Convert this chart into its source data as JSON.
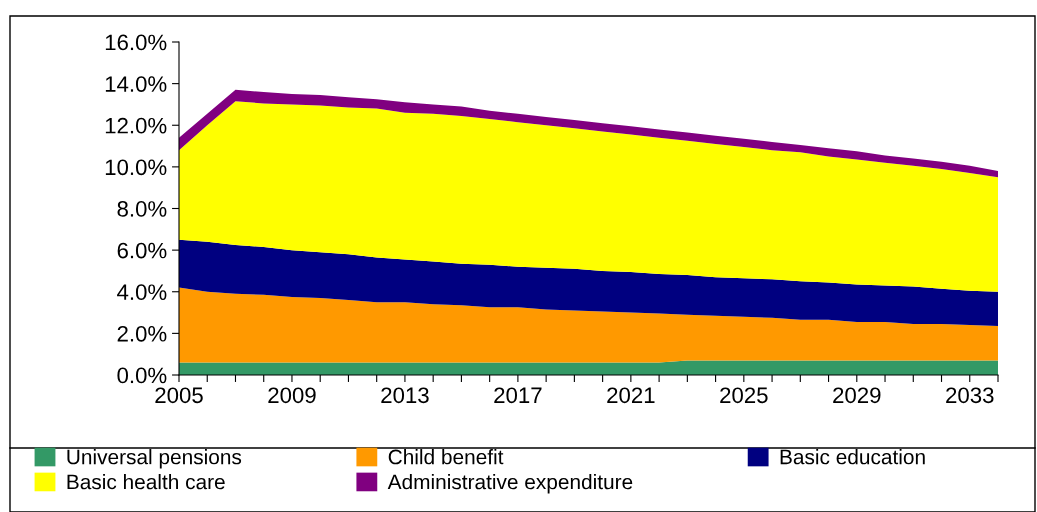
{
  "chart_data": {
    "type": "area",
    "stacked": true,
    "x": [
      2005,
      2006,
      2007,
      2008,
      2009,
      2010,
      2011,
      2012,
      2013,
      2014,
      2015,
      2016,
      2017,
      2018,
      2019,
      2020,
      2021,
      2022,
      2023,
      2024,
      2025,
      2026,
      2027,
      2028,
      2029,
      2030,
      2031,
      2032,
      2033,
      2034
    ],
    "series": [
      {
        "name": "Universal pensions",
        "color": "#339966",
        "values": [
          0.6,
          0.6,
          0.6,
          0.6,
          0.6,
          0.6,
          0.6,
          0.6,
          0.6,
          0.6,
          0.6,
          0.6,
          0.6,
          0.6,
          0.6,
          0.6,
          0.6,
          0.6,
          0.7,
          0.7,
          0.7,
          0.7,
          0.7,
          0.7,
          0.7,
          0.7,
          0.7,
          0.7,
          0.7,
          0.7
        ]
      },
      {
        "name": "Child benefit",
        "color": "#ff9900",
        "values": [
          3.6,
          3.4,
          3.3,
          3.25,
          3.15,
          3.1,
          3.0,
          2.9,
          2.9,
          2.8,
          2.75,
          2.65,
          2.65,
          2.55,
          2.5,
          2.45,
          2.4,
          2.35,
          2.2,
          2.15,
          2.1,
          2.05,
          1.95,
          1.95,
          1.85,
          1.85,
          1.75,
          1.75,
          1.7,
          1.65
        ]
      },
      {
        "name": "Basic education",
        "color": "#000080",
        "values": [
          2.3,
          2.4,
          2.35,
          2.3,
          2.25,
          2.2,
          2.2,
          2.15,
          2.05,
          2.05,
          2.0,
          2.05,
          1.95,
          2.0,
          2.0,
          1.95,
          1.95,
          1.9,
          1.9,
          1.85,
          1.85,
          1.85,
          1.85,
          1.8,
          1.8,
          1.75,
          1.8,
          1.7,
          1.65,
          1.65
        ]
      },
      {
        "name": "Basic health care",
        "color": "#ffff00",
        "values": [
          4.3,
          5.6,
          6.9,
          6.9,
          7.0,
          7.05,
          7.05,
          7.15,
          7.05,
          7.1,
          7.1,
          7.0,
          6.95,
          6.85,
          6.75,
          6.7,
          6.6,
          6.55,
          6.45,
          6.4,
          6.3,
          6.2,
          6.2,
          6.05,
          6.0,
          5.9,
          5.8,
          5.75,
          5.65,
          5.5
        ]
      },
      {
        "name": "Administrative expenditure",
        "color": "#800080",
        "values": [
          0.6,
          0.55,
          0.55,
          0.55,
          0.5,
          0.5,
          0.5,
          0.45,
          0.5,
          0.45,
          0.45,
          0.4,
          0.4,
          0.4,
          0.4,
          0.4,
          0.4,
          0.4,
          0.4,
          0.4,
          0.4,
          0.4,
          0.35,
          0.4,
          0.4,
          0.35,
          0.35,
          0.35,
          0.35,
          0.3
        ]
      }
    ],
    "xlim": [
      2005,
      2034
    ],
    "xticks": [
      2005,
      {
        "value": 2006,
        "label": null
      },
      {
        "value": 2007,
        "label": null
      },
      {
        "value": 2008,
        "label": null
      },
      2009,
      {
        "value": 2010,
        "label": null
      },
      {
        "value": 2011,
        "label": null
      },
      {
        "value": 2012,
        "label": null
      },
      2013,
      {
        "value": 2014,
        "label": null
      },
      {
        "value": 2015,
        "label": null
      },
      {
        "value": 2016,
        "label": null
      },
      2017,
      {
        "value": 2018,
        "label": null
      },
      {
        "value": 2019,
        "label": null
      },
      {
        "value": 2020,
        "label": null
      },
      2021,
      {
        "value": 2022,
        "label": null
      },
      {
        "value": 2023,
        "label": null
      },
      {
        "value": 2024,
        "label": null
      },
      2025,
      {
        "value": 2026,
        "label": null
      },
      {
        "value": 2027,
        "label": null
      },
      {
        "value": 2028,
        "label": null
      },
      2029,
      {
        "value": 2030,
        "label": null
      },
      {
        "value": 2031,
        "label": null
      },
      {
        "value": 2032,
        "label": null
      },
      2033,
      {
        "value": 2034,
        "label": null
      }
    ],
    "ylim": [
      0,
      16
    ],
    "yticks": [
      {
        "value": 0,
        "label": "0.0%"
      },
      {
        "value": 2,
        "label": "2.0%"
      },
      {
        "value": 4,
        "label": "4.0%"
      },
      {
        "value": 6,
        "label": "6.0%"
      },
      {
        "value": 8,
        "label": "8.0%"
      },
      {
        "value": 10,
        "label": "10.0%"
      },
      {
        "value": 12,
        "label": "12.0%"
      },
      {
        "value": 14,
        "label": "14.0%"
      },
      {
        "value": 16,
        "label": "16.0%"
      }
    ],
    "grid": false,
    "legend": "bottom"
  }
}
